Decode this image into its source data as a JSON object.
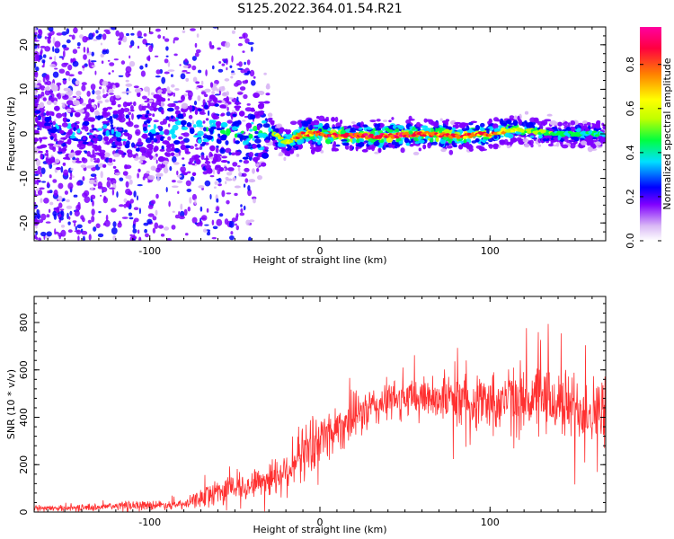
{
  "title": "S125.2022.364.01.54.R21",
  "chart_data": [
    {
      "type": "heatmap",
      "xlabel": "Height of straight line (km)",
      "ylabel": "Frequency (Hz)",
      "xlim": [
        -168,
        168
      ],
      "ylim": [
        -24,
        24
      ],
      "x_ticks": [
        -100,
        0,
        100
      ],
      "y_ticks": [
        -20,
        -10,
        0,
        10,
        20
      ],
      "colorbar": {
        "label": "Normalized spectral amplitude",
        "range": [
          0,
          0.97
        ],
        "ticks": [
          0.0,
          0.2,
          0.4,
          0.6,
          0.8
        ],
        "colormap": [
          "#ffffff",
          "#d9b8f5",
          "#8000ff",
          "#0000ff",
          "#00e0ff",
          "#00ff40",
          "#c0ff00",
          "#ffff00",
          "#ff8000",
          "#ff0040",
          "#ff00a0"
        ]
      },
      "ridge": [
        {
          "x": -168,
          "f": 2,
          "amp": 0.25
        },
        {
          "x": -140,
          "f": 0,
          "amp": 0.3
        },
        {
          "x": -100,
          "f": 1,
          "amp": 0.35
        },
        {
          "x": -60,
          "f": 1,
          "amp": 0.4
        },
        {
          "x": -45,
          "f": -1,
          "amp": 0.45
        },
        {
          "x": -30,
          "f": 1,
          "amp": 0.45
        },
        {
          "x": -20,
          "f": -2,
          "amp": 0.7
        },
        {
          "x": -10,
          "f": 0,
          "amp": 0.8
        },
        {
          "x": 0,
          "f": 0,
          "amp": 0.85
        },
        {
          "x": 20,
          "f": -0.5,
          "amp": 0.9
        },
        {
          "x": 40,
          "f": -0.5,
          "amp": 0.9
        },
        {
          "x": 60,
          "f": 0,
          "amp": 0.85
        },
        {
          "x": 80,
          "f": -0.5,
          "amp": 0.85
        },
        {
          "x": 100,
          "f": 0,
          "amp": 0.8
        },
        {
          "x": 115,
          "f": 1,
          "amp": 0.6
        },
        {
          "x": 140,
          "f": 0,
          "amp": 0.45
        },
        {
          "x": 168,
          "f": 0,
          "amp": 0.4
        }
      ]
    },
    {
      "type": "line",
      "xlabel": "Height of straight line (km)",
      "ylabel": "SNR (10 * v/v)",
      "xlim": [
        -168,
        168
      ],
      "ylim": [
        0,
        910
      ],
      "x_ticks": [
        -100,
        0,
        100
      ],
      "y_ticks": [
        0,
        200,
        400,
        600,
        800
      ],
      "color": "#ff3030",
      "envelope": [
        {
          "x": -168,
          "mean": 15,
          "spread": 10
        },
        {
          "x": -130,
          "mean": 20,
          "spread": 15
        },
        {
          "x": -110,
          "mean": 30,
          "spread": 20
        },
        {
          "x": -80,
          "mean": 30,
          "spread": 20
        },
        {
          "x": -60,
          "mean": 90,
          "spread": 60
        },
        {
          "x": -40,
          "mean": 120,
          "spread": 60
        },
        {
          "x": -20,
          "mean": 170,
          "spread": 100
        },
        {
          "x": -10,
          "mean": 250,
          "spread": 120
        },
        {
          "x": 0,
          "mean": 310,
          "spread": 120
        },
        {
          "x": 20,
          "mean": 400,
          "spread": 100
        },
        {
          "x": 40,
          "mean": 470,
          "spread": 90
        },
        {
          "x": 60,
          "mean": 490,
          "spread": 90
        },
        {
          "x": 80,
          "mean": 480,
          "spread": 110
        },
        {
          "x": 100,
          "mean": 470,
          "spread": 120
        },
        {
          "x": 120,
          "mean": 480,
          "spread": 160
        },
        {
          "x": 140,
          "mean": 460,
          "spread": 150
        },
        {
          "x": 168,
          "mean": 420,
          "spread": 150
        }
      ]
    }
  ]
}
